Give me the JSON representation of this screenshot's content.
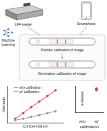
{
  "devices": {
    "reader": "LFA reader",
    "phone": "Smartphone"
  },
  "method": "Machine Learning",
  "steps": [
    "Position calibration of image",
    "Illumination calibration of image"
  ],
  "chart_data": [
    {
      "type": "line",
      "x": [
        1,
        2,
        3,
        4,
        5,
        6
      ],
      "xlim": [
        0,
        7
      ],
      "ylim": [
        0,
        1
      ],
      "x_label": "Concentration",
      "y_label": "Intensity",
      "tick_labels": false,
      "grid": false,
      "marker": "circle",
      "series": [
        {
          "name": "w/o calibration",
          "color": "#9a9a9a",
          "values": [
            0.08,
            0.12,
            0.17,
            0.22,
            0.27,
            0.32
          ]
        },
        {
          "name": "w/ calibration",
          "color": "#e0403a",
          "values": [
            0.12,
            0.27,
            0.43,
            0.58,
            0.73,
            0.88
          ]
        }
      ]
    },
    {
      "type": "strip",
      "categories": [
        "w/o",
        "w/"
      ],
      "x_label": "calibration",
      "ylim": [
        0,
        1
      ],
      "tick_labels": "x",
      "grid": false,
      "groups": [
        {
          "color": "#9a9a9a",
          "values": [
            0.3,
            0.42,
            0.5,
            0.58,
            0.66,
            0.75
          ]
        },
        {
          "color": "#e0403a",
          "values": [
            0.84,
            0.86,
            0.87,
            0.88,
            0.89,
            0.9
          ]
        }
      ]
    }
  ]
}
